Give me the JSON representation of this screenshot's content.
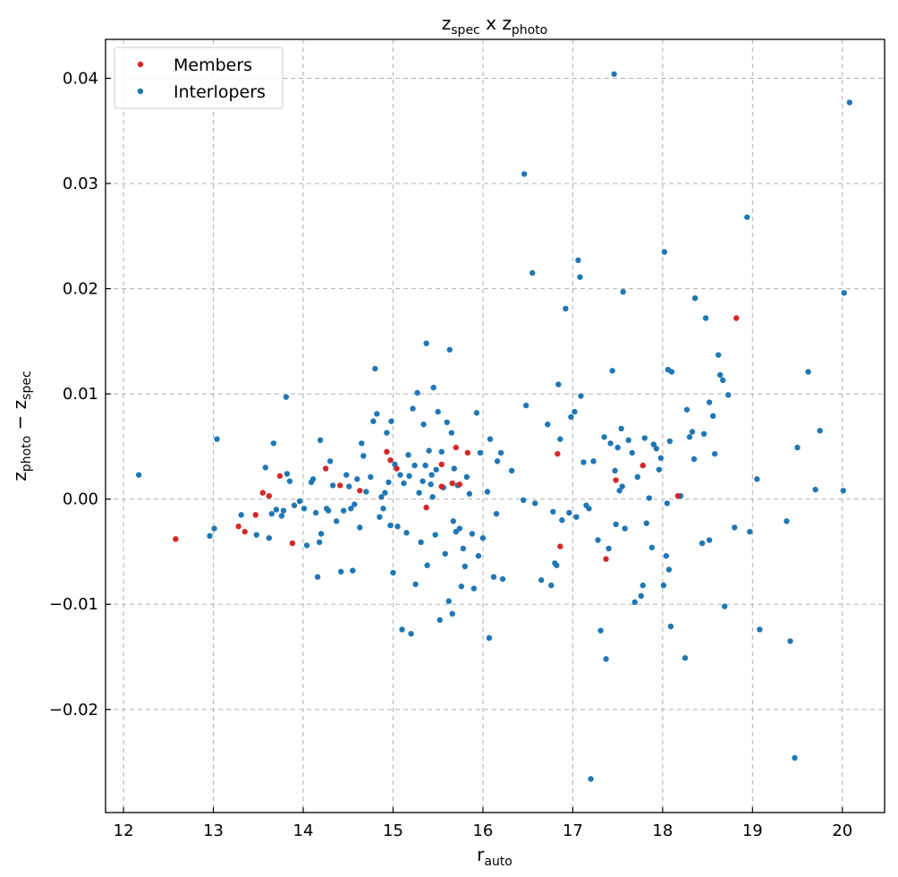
{
  "chart_data": {
    "type": "scatter",
    "title": {
      "main": "z",
      "sub1": "spec",
      "mid": " x ",
      "sub2": "photo"
    },
    "xlabel": {
      "main": "r",
      "sub": "auto"
    },
    "ylabel": {
      "main1": "z",
      "sub1": "photo",
      "mid": " − ",
      "main2": "z",
      "sub2": "spec"
    },
    "xlim": [
      11.8,
      20.47
    ],
    "ylim": [
      -0.0298,
      0.0437
    ],
    "xticks": [
      12,
      13,
      14,
      15,
      16,
      17,
      18,
      19,
      20
    ],
    "yticks": [
      -0.02,
      -0.01,
      0.0,
      0.01,
      0.02,
      0.03,
      0.04
    ],
    "ytick_labels": [
      "−0.02",
      "−0.01",
      "0.00",
      "0.01",
      "0.02",
      "0.03",
      "0.04"
    ],
    "grid": true,
    "legend_position": "top-left",
    "series": [
      {
        "name": "Members",
        "color": "#d62728",
        "points": [
          [
            12.58,
            -0.0038
          ],
          [
            13.28,
            -0.0026
          ],
          [
            13.35,
            -0.0031
          ],
          [
            13.47,
            -0.0015
          ],
          [
            13.55,
            0.0006
          ],
          [
            13.62,
            0.0003
          ],
          [
            13.74,
            0.0022
          ],
          [
            13.88,
            -0.0042
          ],
          [
            14.25,
            0.0029
          ],
          [
            14.41,
            0.0013
          ],
          [
            14.63,
            0.0008
          ],
          [
            14.93,
            0.0045
          ],
          [
            14.97,
            0.0037
          ],
          [
            15.04,
            0.0029
          ],
          [
            15.37,
            -0.0008
          ],
          [
            15.54,
            0.0033
          ],
          [
            15.54,
            0.0012
          ],
          [
            15.66,
            0.0015
          ],
          [
            15.7,
            0.0049
          ],
          [
            15.74,
            0.0014
          ],
          [
            15.83,
            0.0044
          ],
          [
            16.83,
            0.0043
          ],
          [
            16.86,
            -0.0045
          ],
          [
            17.37,
            -0.0057
          ],
          [
            17.48,
            0.0018
          ],
          [
            17.78,
            0.0032
          ],
          [
            18.17,
            0.0003
          ],
          [
            18.82,
            0.0172
          ]
        ]
      },
      {
        "name": "Interlopers",
        "color": "#1f77b4",
        "points": [
          [
            12.17,
            0.0023
          ],
          [
            12.96,
            -0.0035
          ],
          [
            13.01,
            -0.0028
          ],
          [
            13.04,
            0.0057
          ],
          [
            13.31,
            -0.0015
          ],
          [
            13.48,
            -0.0034
          ],
          [
            13.58,
            0.003
          ],
          [
            13.62,
            -0.0037
          ],
          [
            13.65,
            -0.0014
          ],
          [
            13.67,
            0.0053
          ],
          [
            13.7,
            -0.001
          ],
          [
            13.76,
            -0.0016
          ],
          [
            13.78,
            -0.0011
          ],
          [
            13.81,
            0.0097
          ],
          [
            13.82,
            0.0024
          ],
          [
            13.85,
            0.0017
          ],
          [
            13.9,
            -0.0006
          ],
          [
            13.96,
            -0.0002
          ],
          [
            14.01,
            -0.0009
          ],
          [
            14.04,
            -0.0044
          ],
          [
            14.09,
            0.0016
          ],
          [
            14.11,
            0.0019
          ],
          [
            14.14,
            -0.0013
          ],
          [
            14.16,
            -0.0074
          ],
          [
            14.18,
            -0.0041
          ],
          [
            14.19,
            0.0056
          ],
          [
            14.2,
            -0.0033
          ],
          [
            14.26,
            -0.0009
          ],
          [
            14.28,
            -0.0011
          ],
          [
            14.3,
            0.0036
          ],
          [
            14.33,
            0.0013
          ],
          [
            14.37,
            -0.0021
          ],
          [
            14.42,
            -0.0069
          ],
          [
            14.45,
            -0.0011
          ],
          [
            14.48,
            0.0023
          ],
          [
            14.51,
            0.0012
          ],
          [
            14.53,
            -0.0009
          ],
          [
            14.55,
            -0.0068
          ],
          [
            14.57,
            -0.0005
          ],
          [
            14.6,
            0.0019
          ],
          [
            14.63,
            -0.0027
          ],
          [
            14.65,
            0.0053
          ],
          [
            14.67,
            0.0041
          ],
          [
            14.7,
            0.0007
          ],
          [
            14.75,
            0.0021
          ],
          [
            14.78,
            0.0074
          ],
          [
            14.8,
            0.0124
          ],
          [
            14.82,
            0.0081
          ],
          [
            14.85,
            -0.0017
          ],
          [
            14.87,
            0.0002
          ],
          [
            14.89,
            -0.0009
          ],
          [
            14.91,
            0.0006
          ],
          [
            14.93,
            0.0063
          ],
          [
            14.95,
            0.0016
          ],
          [
            14.97,
            -0.0025
          ],
          [
            14.98,
            0.0074
          ],
          [
            15.0,
            -0.007
          ],
          [
            15.02,
            0.0033
          ],
          [
            15.05,
            -0.0026
          ],
          [
            15.08,
            0.0023
          ],
          [
            15.1,
            -0.0124
          ],
          [
            15.12,
            0.0015
          ],
          [
            15.15,
            -0.0032
          ],
          [
            15.17,
            0.0042
          ],
          [
            15.18,
            0.0022
          ],
          [
            15.2,
            -0.0128
          ],
          [
            15.22,
            0.0086
          ],
          [
            15.24,
            0.0032
          ],
          [
            15.25,
            -0.0081
          ],
          [
            15.27,
            0.0101
          ],
          [
            15.29,
            0.0006
          ],
          [
            15.31,
            -0.0041
          ],
          [
            15.33,
            0.0017
          ],
          [
            15.34,
            0.0071
          ],
          [
            15.36,
            0.0032
          ],
          [
            15.37,
            0.0148
          ],
          [
            15.38,
            -0.0063
          ],
          [
            15.4,
            0.0046
          ],
          [
            15.42,
            0.0014
          ],
          [
            15.43,
            0.0023
          ],
          [
            15.44,
            0.0002
          ],
          [
            15.45,
            0.0106
          ],
          [
            15.47,
            -0.0034
          ],
          [
            15.48,
            0.0028
          ],
          [
            15.5,
            0.0083
          ],
          [
            15.52,
            -0.0115
          ],
          [
            15.54,
            0.0045
          ],
          [
            15.56,
            0.0011
          ],
          [
            15.58,
            -0.0052
          ],
          [
            15.6,
            0.0073
          ],
          [
            15.62,
            -0.0097
          ],
          [
            15.63,
            0.0142
          ],
          [
            15.65,
            0.0063
          ],
          [
            15.66,
            -0.0109
          ],
          [
            15.67,
            -0.0021
          ],
          [
            15.68,
            0.0029
          ],
          [
            15.7,
            -0.0031
          ],
          [
            15.72,
            0.0013
          ],
          [
            15.74,
            -0.0028
          ],
          [
            15.76,
            -0.0083
          ],
          [
            15.78,
            -0.0047
          ],
          [
            15.8,
            -0.0064
          ],
          [
            15.82,
            0.0021
          ],
          [
            15.85,
            0.0005
          ],
          [
            15.88,
            -0.0033
          ],
          [
            15.9,
            -0.0085
          ],
          [
            15.93,
            0.0082
          ],
          [
            15.95,
            -0.0054
          ],
          [
            15.97,
            0.0044
          ],
          [
            16.0,
            -0.0037
          ],
          [
            16.05,
            0.0007
          ],
          [
            16.07,
            -0.0132
          ],
          [
            16.08,
            0.0057
          ],
          [
            16.12,
            -0.0074
          ],
          [
            16.15,
            -0.0014
          ],
          [
            16.16,
            0.0036
          ],
          [
            16.2,
            0.0044
          ],
          [
            16.22,
            -0.0076
          ],
          [
            16.32,
            0.0027
          ],
          [
            16.45,
            -0.0001
          ],
          [
            16.46,
            0.0309
          ],
          [
            16.48,
            0.0089
          ],
          [
            16.55,
            0.0215
          ],
          [
            16.58,
            -0.0004
          ],
          [
            16.65,
            -0.0077
          ],
          [
            16.72,
            0.0071
          ],
          [
            16.76,
            -0.0082
          ],
          [
            16.78,
            -0.0012
          ],
          [
            16.8,
            -0.0061
          ],
          [
            16.82,
            -0.0063
          ],
          [
            16.84,
            0.0109
          ],
          [
            16.86,
            0.0057
          ],
          [
            16.88,
            -0.002
          ],
          [
            16.92,
            0.0181
          ],
          [
            16.96,
            -0.0013
          ],
          [
            16.98,
            0.0078
          ],
          [
            17.02,
            0.0083
          ],
          [
            17.04,
            -0.0017
          ],
          [
            17.06,
            0.0227
          ],
          [
            17.08,
            0.0211
          ],
          [
            17.09,
            0.0098
          ],
          [
            17.12,
            0.0035
          ],
          [
            17.15,
            -0.0006
          ],
          [
            17.18,
            -0.0009
          ],
          [
            17.2,
            -0.0266
          ],
          [
            17.23,
            0.0036
          ],
          [
            17.28,
            -0.0039
          ],
          [
            17.31,
            -0.0125
          ],
          [
            17.35,
            0.0059
          ],
          [
            17.37,
            -0.0152
          ],
          [
            17.4,
            -0.0047
          ],
          [
            17.42,
            0.0053
          ],
          [
            17.44,
            0.0122
          ],
          [
            17.46,
            0.0404
          ],
          [
            17.47,
            0.0027
          ],
          [
            17.48,
            -0.0024
          ],
          [
            17.5,
            0.0049
          ],
          [
            17.52,
            0.0008
          ],
          [
            17.54,
            0.0067
          ],
          [
            17.55,
            0.0012
          ],
          [
            17.56,
            0.0197
          ],
          [
            17.58,
            -0.0028
          ],
          [
            17.62,
            0.0056
          ],
          [
            17.66,
            0.0044
          ],
          [
            17.69,
            -0.0098
          ],
          [
            17.72,
            0.0021
          ],
          [
            17.76,
            -0.0092
          ],
          [
            17.78,
            -0.0082
          ],
          [
            17.8,
            0.0058
          ],
          [
            17.82,
            -0.0023
          ],
          [
            17.85,
            0.0001
          ],
          [
            17.88,
            -0.0046
          ],
          [
            17.9,
            0.0052
          ],
          [
            17.93,
            0.0048
          ],
          [
            17.96,
            0.0028
          ],
          [
            17.98,
            0.0039
          ],
          [
            18.01,
            -0.0082
          ],
          [
            18.02,
            0.0235
          ],
          [
            18.04,
            -0.0054
          ],
          [
            18.05,
            -0.0004
          ],
          [
            18.06,
            0.0123
          ],
          [
            18.07,
            -0.0067
          ],
          [
            18.08,
            0.0055
          ],
          [
            18.09,
            -0.0121
          ],
          [
            18.1,
            0.0121
          ],
          [
            18.2,
            0.0003
          ],
          [
            18.25,
            -0.0151
          ],
          [
            18.27,
            0.0085
          ],
          [
            18.3,
            0.0059
          ],
          [
            18.33,
            0.0064
          ],
          [
            18.35,
            0.0038
          ],
          [
            18.36,
            0.0191
          ],
          [
            18.44,
            -0.0042
          ],
          [
            18.46,
            0.0062
          ],
          [
            18.48,
            0.0172
          ],
          [
            18.52,
            -0.0039
          ],
          [
            18.52,
            0.0092
          ],
          [
            18.56,
            0.0079
          ],
          [
            18.58,
            0.0043
          ],
          [
            18.62,
            0.0137
          ],
          [
            18.64,
            0.0118
          ],
          [
            18.67,
            0.0113
          ],
          [
            18.69,
            -0.0102
          ],
          [
            18.73,
            0.0099
          ],
          [
            18.8,
            -0.0027
          ],
          [
            18.94,
            0.0268
          ],
          [
            18.97,
            -0.0031
          ],
          [
            19.05,
            0.0019
          ],
          [
            19.08,
            -0.0124
          ],
          [
            19.38,
            -0.0021
          ],
          [
            19.42,
            -0.0135
          ],
          [
            19.47,
            -0.0246
          ],
          [
            19.5,
            0.0049
          ],
          [
            19.62,
            0.0121
          ],
          [
            19.7,
            0.0009
          ],
          [
            19.75,
            0.0065
          ],
          [
            20.01,
            0.0008
          ],
          [
            20.02,
            0.0196
          ],
          [
            20.08,
            0.0377
          ]
        ]
      }
    ]
  }
}
